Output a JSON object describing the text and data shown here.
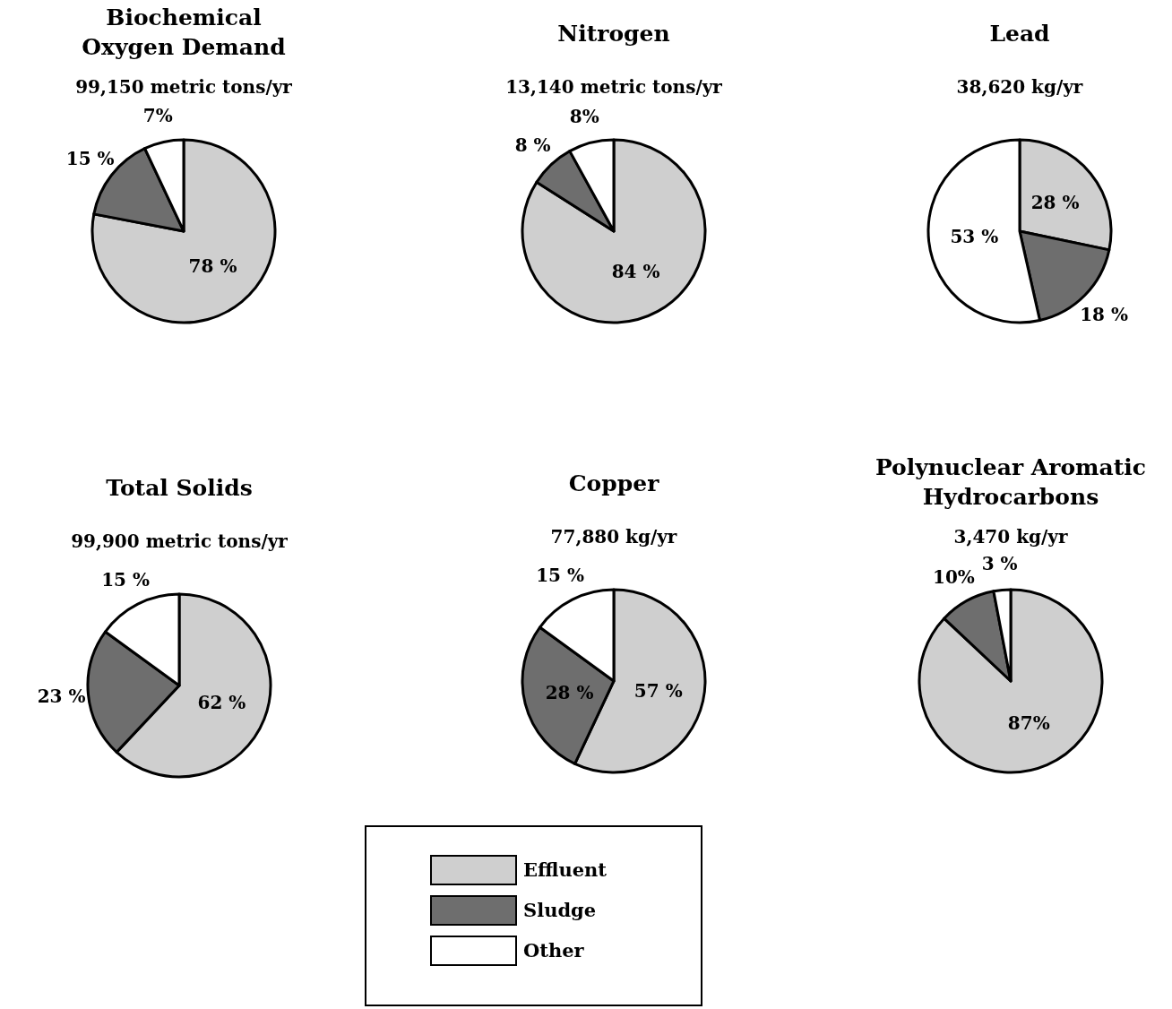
{
  "chart_data": [
    {
      "type": "pie",
      "title": "Biochemical\nOxygen Demand",
      "subtitle": "99,150 metric tons/yr",
      "categories": [
        "Effluent",
        "Sludge",
        "Other"
      ],
      "values": [
        78,
        15,
        7
      ],
      "colors": [
        "#cfcfcf",
        "#6e6e6e",
        "#ffffff"
      ],
      "value_labels": [
        "78 %",
        "15 %",
        "7%"
      ],
      "legend": "bottom"
    },
    {
      "type": "pie",
      "title": "Nitrogen",
      "subtitle": "13,140 metric tons/yr",
      "categories": [
        null,
        null,
        null
      ],
      "values": [
        84,
        8,
        8
      ],
      "colors": [
        "#cfcfcf",
        "#6e6e6e",
        "#ffffff"
      ],
      "value_labels": [
        "84 %",
        "8 %",
        "8%"
      ]
    },
    {
      "type": "pie",
      "title": "Lead",
      "subtitle": "38,620 kg/yr",
      "categories": [
        null,
        null,
        null
      ],
      "values": [
        28,
        18,
        53
      ],
      "colors": [
        "#cfcfcf",
        "#6e6e6e",
        "#ffffff"
      ],
      "value_labels": [
        "28 %",
        "18 %",
        "53 %"
      ]
    },
    {
      "type": "pie",
      "title": "Total Solids",
      "subtitle": "99,900 metric tons/yr",
      "categories": [
        null,
        null,
        null
      ],
      "values": [
        62,
        23,
        15
      ],
      "colors": [
        "#cfcfcf",
        "#6e6e6e",
        "#ffffff"
      ],
      "value_labels": [
        "62 %",
        "23 %",
        "15 %"
      ]
    },
    {
      "type": "pie",
      "title": "Copper",
      "subtitle": "77,880 kg/yr",
      "categories": [
        null,
        null,
        null
      ],
      "values": [
        57,
        28,
        15
      ],
      "colors": [
        "#cfcfcf",
        "#6e6e6e",
        "#ffffff"
      ],
      "value_labels": [
        "57 %",
        "28 %",
        "15 %"
      ]
    },
    {
      "type": "pie",
      "title": "Polynuclear Aromatic\nHydrocarbons",
      "subtitle": "3,470 kg/yr",
      "categories": [
        null,
        null,
        null
      ],
      "values": [
        87,
        10,
        3
      ],
      "colors": [
        "#cfcfcf",
        "#6e6e6e",
        "#ffffff"
      ],
      "value_labels": [
        "87%",
        "10%",
        "3 %"
      ]
    }
  ]
}
